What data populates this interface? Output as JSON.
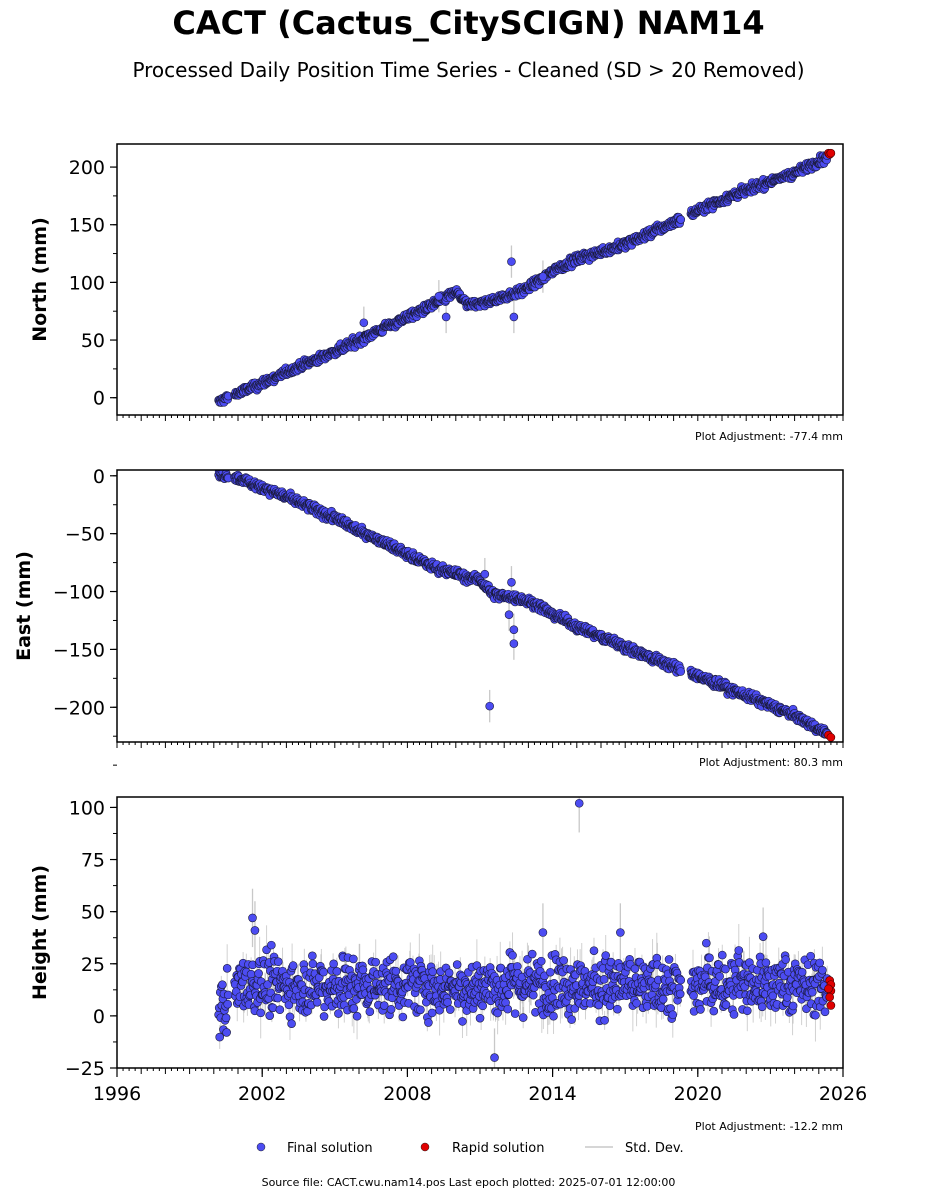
{
  "title": "CACT (Cactus_CitySCIGN) NAM14",
  "subtitle": "Processed Daily Position Time Series - Cleaned (SD > 20 Removed)",
  "source_text": "Source file: CACT.cwu.nam14.pos  Last epoch plotted: 2025-07-01 12:00:00",
  "colors": {
    "final": "#4c4cf2",
    "rapid": "#e00000",
    "stddev": "#c8c8c8",
    "axis": "#000000"
  },
  "legend": {
    "final": "Final solution",
    "rapid": "Rapid solution",
    "stddev": "Std. Dev."
  },
  "chart_data": [
    {
      "type": "scatter",
      "ylabel": "North (mm)",
      "note": "Plot Adjustment: -77.4 mm",
      "xlim": [
        1996,
        2026
      ],
      "ylim": [
        -15,
        220
      ],
      "yticks": [
        0,
        50,
        100,
        150,
        200
      ],
      "xticks": [],
      "trend": [
        [
          2000.2,
          -4
        ],
        [
          2000.5,
          0
        ],
        [
          2001.5,
          8
        ],
        [
          2003,
          22
        ],
        [
          2005,
          40
        ],
        [
          2007,
          60
        ],
        [
          2009,
          80
        ],
        [
          2010,
          92
        ],
        [
          2010.5,
          80
        ],
        [
          2011.5,
          84
        ],
        [
          2013,
          95
        ],
        [
          2014,
          110
        ],
        [
          2015,
          120
        ],
        [
          2017,
          133
        ],
        [
          2019,
          152
        ],
        [
          2019.8,
          160
        ],
        [
          2020,
          163
        ],
        [
          2022,
          180
        ],
        [
          2024,
          195
        ],
        [
          2025.3,
          208
        ],
        [
          2025.5,
          212
        ]
      ],
      "noise": 1.8,
      "outliers": [
        [
          2009.6,
          70
        ],
        [
          2012.3,
          118
        ],
        [
          2012.4,
          70
        ],
        [
          2006.2,
          65
        ],
        [
          2013.6,
          105
        ],
        [
          2009.3,
          88
        ]
      ],
      "rapid": [
        [
          2025.4,
          212
        ],
        [
          2025.45,
          211
        ],
        [
          2025.5,
          212
        ]
      ]
    },
    {
      "type": "scatter",
      "ylabel": "East (mm)",
      "note": "Plot Adjustment: 80.3 mm",
      "xlim": [
        1996,
        2026
      ],
      "ylim": [
        -230,
        5
      ],
      "yticks": [
        0,
        -50,
        -100,
        -150,
        -200
      ],
      "xticks": [],
      "trend": [
        [
          2000.2,
          1
        ],
        [
          2001,
          -2
        ],
        [
          2003,
          -18
        ],
        [
          2005,
          -37
        ],
        [
          2007,
          -57
        ],
        [
          2009,
          -78
        ],
        [
          2010.5,
          -88
        ],
        [
          2011,
          -90
        ],
        [
          2011.5,
          -102
        ],
        [
          2013,
          -108
        ],
        [
          2015,
          -130
        ],
        [
          2017,
          -148
        ],
        [
          2019,
          -165
        ],
        [
          2019.6,
          -170
        ],
        [
          2020,
          -173
        ],
        [
          2022,
          -190
        ],
        [
          2024,
          -207
        ],
        [
          2025.5,
          -225
        ]
      ],
      "noise": 1.8,
      "outliers": [
        [
          2011.4,
          -199
        ],
        [
          2012.3,
          -92
        ],
        [
          2012.4,
          -145
        ],
        [
          2012.4,
          -133
        ],
        [
          2011.2,
          -85
        ],
        [
          2012.2,
          -120
        ]
      ],
      "rapid": [
        [
          2025.4,
          -224
        ],
        [
          2025.5,
          -226
        ]
      ]
    },
    {
      "type": "scatter",
      "ylabel": "Height (mm)",
      "note": "Plot Adjustment: -12.2 mm",
      "xlim": [
        1996,
        2026
      ],
      "ylim": [
        -25,
        105
      ],
      "yticks": [
        -25,
        0,
        25,
        50,
        75,
        100
      ],
      "xticks": [
        1996,
        2002,
        2008,
        2014,
        2020,
        2026
      ],
      "trend": [
        [
          2000.2,
          2
        ],
        [
          2000.8,
          12
        ],
        [
          2002,
          15
        ],
        [
          2006,
          15
        ],
        [
          2010,
          14
        ],
        [
          2014,
          15
        ],
        [
          2018,
          14
        ],
        [
          2019.6,
          14
        ],
        [
          2020,
          15
        ],
        [
          2024,
          15
        ],
        [
          2025.5,
          14
        ]
      ],
      "noise": 7,
      "outliers": [
        [
          2015.1,
          102
        ],
        [
          2011.6,
          -20
        ],
        [
          2001.6,
          47
        ],
        [
          2016.8,
          40
        ],
        [
          2013.6,
          40
        ],
        [
          2022.7,
          38
        ],
        [
          2001.7,
          41
        ]
      ],
      "rapid": [
        [
          2025.45,
          17
        ],
        [
          2025.5,
          15
        ],
        [
          2025.5,
          12
        ],
        [
          2025.45,
          9
        ],
        [
          2025.5,
          5
        ],
        [
          2025.4,
          13
        ]
      ]
    }
  ]
}
